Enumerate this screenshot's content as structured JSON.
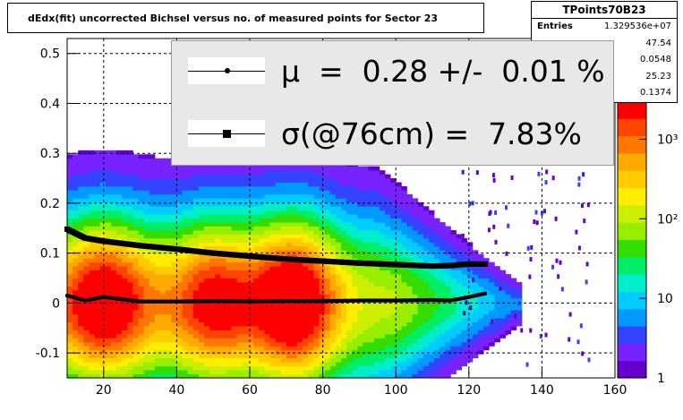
{
  "title": "dEdx(fit) uncorrected Bichsel versus no. of measured points for Sector 23",
  "stats": {
    "name": "TPoints70B23",
    "rows": [
      {
        "key": "Entries",
        "value": "1.329536e+07"
      },
      {
        "key": "",
        "value": "47.54"
      },
      {
        "key": "",
        "value": "0.0548"
      },
      {
        "key": "",
        "value": "25.23"
      },
      {
        "key": "",
        "value": "0.1374"
      }
    ]
  },
  "legend": {
    "mu_text": "μ  =  0.28 +/-  0.01 %",
    "sigma_text": "σ(@76cm) =  7.83%"
  },
  "colors": {
    "grid": "#000000",
    "palette": [
      "#6600cc",
      "#7722ff",
      "#3344ff",
      "#0099ff",
      "#00ccff",
      "#00eecc",
      "#00ee66",
      "#33dd00",
      "#99ee00",
      "#ccee00",
      "#ffee00",
      "#ffcc00",
      "#ffaa00",
      "#ff7700",
      "#ff4400",
      "#ff0000"
    ]
  },
  "chart_data": {
    "type": "heatmap",
    "xlim": [
      10,
      160
    ],
    "ylim": [
      -0.15,
      0.53
    ],
    "x_ticks": [
      20,
      40,
      60,
      80,
      100,
      120,
      140,
      160
    ],
    "x_tick_labels": [
      "20",
      "40",
      "60",
      "80",
      "100",
      "120",
      "140",
      "160"
    ],
    "y_ticks": [
      -0.1,
      0,
      0.1,
      0.2,
      0.3,
      0.4,
      0.5
    ],
    "y_tick_labels": [
      "-0.1",
      "0",
      "0.1",
      "0.2",
      "0.3",
      "0.4",
      "0.5"
    ],
    "z_scale": "log",
    "zlim": [
      1,
      3000
    ],
    "z_ticks": [
      1,
      10,
      100,
      1000
    ],
    "z_tick_labels": [
      "1",
      "10",
      "10²",
      "10³"
    ],
    "grid": true,
    "series": [
      {
        "name": "μ",
        "marker": "dot",
        "x": [
          10,
          15,
          20,
          30,
          40,
          50,
          60,
          70,
          80,
          90,
          100,
          110,
          115,
          120,
          125
        ],
        "y": [
          0.015,
          0.005,
          0.012,
          0.003,
          0.003,
          0.004,
          0.003,
          0.004,
          0.004,
          0.005,
          0.005,
          0.006,
          0.005,
          0.012,
          0.02
        ]
      },
      {
        "name": "σ(@76cm)",
        "marker": "square",
        "x": [
          10,
          15,
          20,
          30,
          40,
          50,
          60,
          70,
          80,
          90,
          100,
          110,
          115,
          120,
          125
        ],
        "y": [
          0.148,
          0.13,
          0.124,
          0.115,
          0.108,
          0.1,
          0.094,
          0.088,
          0.084,
          0.08,
          0.077,
          0.074,
          0.075,
          0.078,
          0.078
        ]
      }
    ]
  }
}
